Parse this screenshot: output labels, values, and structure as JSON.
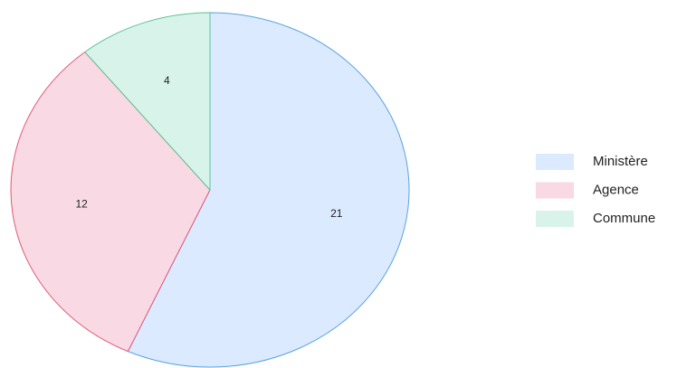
{
  "chart_data": {
    "type": "pie",
    "categories": [
      "Ministère",
      "Agence",
      "Commune"
    ],
    "values": [
      21,
      12,
      4
    ],
    "colors": [
      "#dbeafe",
      "#f9d9e3",
      "#d8f4ea"
    ],
    "edge_colors": [
      "#5ba3e0",
      "#e05a7a",
      "#5cc49a"
    ],
    "legend": "right"
  }
}
